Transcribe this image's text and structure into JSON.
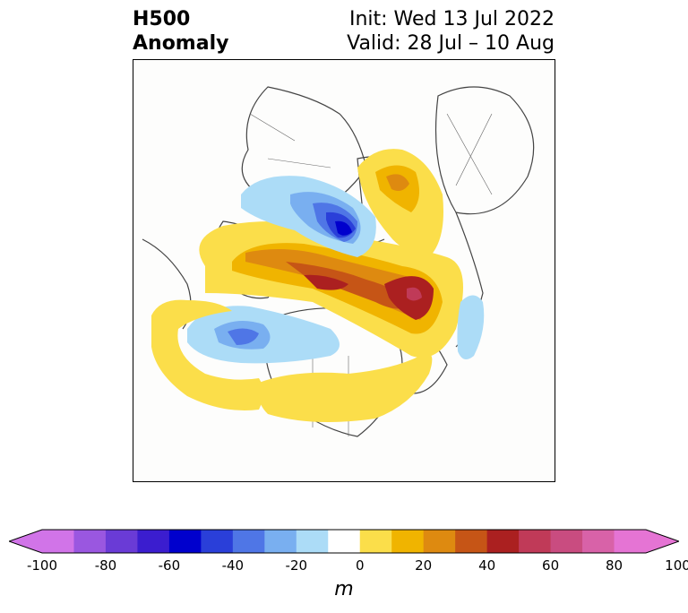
{
  "header": {
    "variable": "H500",
    "field": "Anomaly",
    "init": "Init: Wed 13 Jul 2022",
    "valid": "Valid: 28 Jul – 10 Aug"
  },
  "colorbar": {
    "unit": "m",
    "tick_labels": [
      "-100",
      "-80",
      "-60",
      "-40",
      "-20",
      "0",
      "20",
      "40",
      "60",
      "80",
      "100"
    ],
    "levels": [
      -100,
      -90,
      -80,
      -70,
      -60,
      -50,
      -40,
      -30,
      -20,
      -10,
      10,
      20,
      30,
      40,
      50,
      60,
      70,
      80,
      90,
      100
    ],
    "colors": [
      "#d174e8",
      "#9a57e0",
      "#6a3bd6",
      "#3b1dcf",
      "#0000cd",
      "#2a3fd9",
      "#4f76e6",
      "#79aff0",
      "#acdcf7",
      "#ffffff",
      "#fbde4a",
      "#f0b400",
      "#de8a10",
      "#c65516",
      "#ab2020",
      "#c03a58",
      "#c94c80",
      "#d862a8",
      "#e574d4"
    ],
    "extend_low_color": "#d174e8",
    "extend_high_color": "#e574d4"
  },
  "map": {
    "projection": "north-polar-stereographic",
    "land_color": "#fdfdfc",
    "border_color": "#444444",
    "anomaly_centers": [
      {
        "region": "Northern Alaska / Beaufort Sea",
        "sign": "positive",
        "peak_m": 60
      },
      {
        "region": "Canadian Arctic Archipelago",
        "sign": "positive",
        "peak_m": 60
      },
      {
        "region": "Greenland",
        "sign": "positive",
        "peak_m": 60
      },
      {
        "region": "Northern Scandinavia / Barents Sea",
        "sign": "positive",
        "peak_m": 40
      },
      {
        "region": "Northern Siberia / Kara Sea",
        "sign": "negative",
        "peak_m": -60
      },
      {
        "region": "East Siberia",
        "sign": "negative",
        "peak_m": -20
      },
      {
        "region": "Gulf of Alaska",
        "sign": "negative",
        "peak_m": -40
      },
      {
        "region": "Western Canada",
        "sign": "negative",
        "peak_m": -20
      },
      {
        "region": "Northwest Pacific",
        "sign": "positive",
        "peak_m": 20
      },
      {
        "region": "Contiguous United States",
        "sign": "positive",
        "peak_m": 20
      },
      {
        "region": "Eastern Canada",
        "sign": "positive",
        "peak_m": 20
      },
      {
        "region": "Central North Atlantic",
        "sign": "negative",
        "peak_m": -20
      }
    ]
  }
}
